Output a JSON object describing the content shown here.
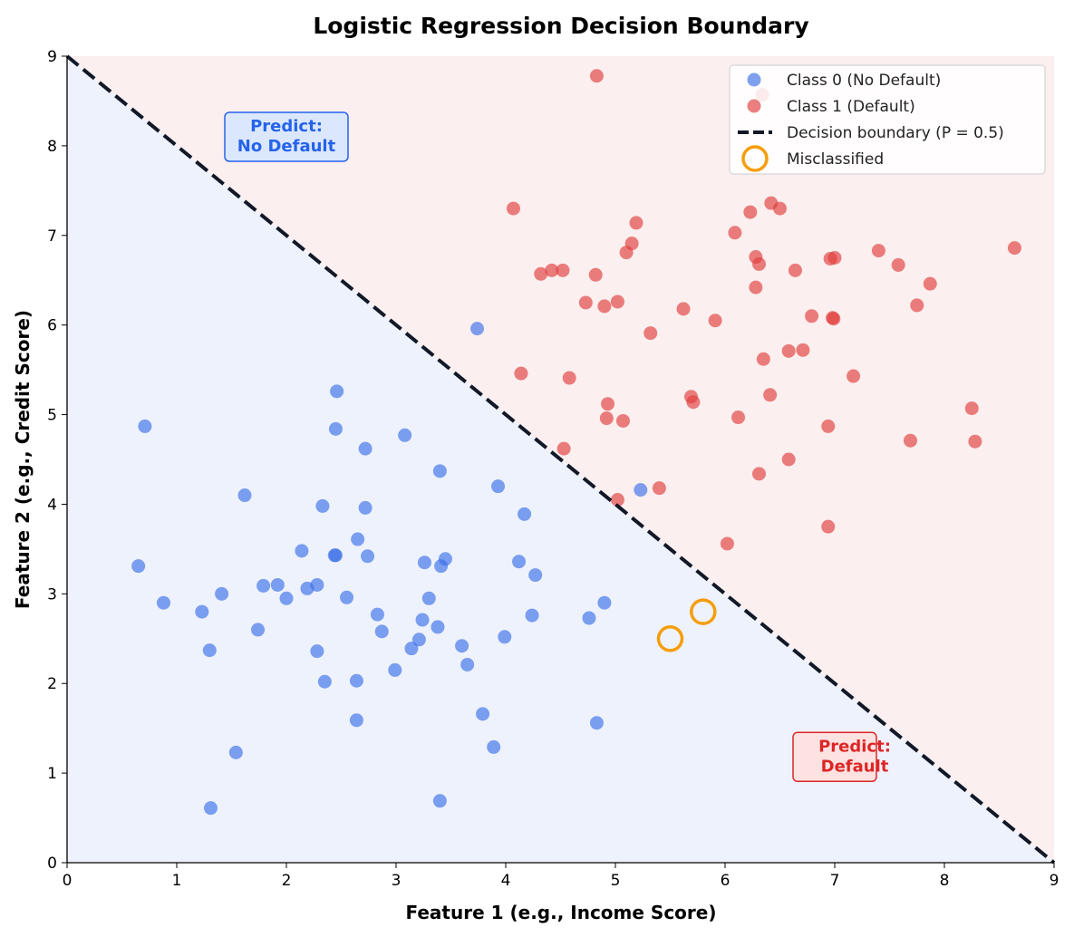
{
  "chart_data": {
    "type": "scatter",
    "title": "Logistic Regression Decision Boundary",
    "xlabel": "Feature 1 (e.g., Income Score)",
    "ylabel": "Feature 2 (e.g., Credit Score)",
    "xlim": [
      0,
      9
    ],
    "ylim": [
      0,
      9
    ],
    "xticks": [
      "0",
      "1",
      "2",
      "3",
      "4",
      "5",
      "6",
      "7",
      "8",
      "9"
    ],
    "yticks": [
      "0",
      "1",
      "2",
      "3",
      "4",
      "5",
      "6",
      "7",
      "8",
      "9"
    ],
    "grid": false,
    "legend_placement": "top-right",
    "colors": {
      "class0": "#3b6fe8",
      "class1": "#e03c3c",
      "boundary": "#111827",
      "misclassified": "#f59e0b",
      "region0": "#eef2fd",
      "region1": "#fcefef"
    },
    "series": [
      {
        "name": "Class 0 (No Default)",
        "points": [
          [
            0.71,
            4.87
          ],
          [
            0.65,
            3.31
          ],
          [
            0.88,
            2.9
          ],
          [
            1.23,
            2.8
          ],
          [
            1.3,
            2.37
          ],
          [
            1.41,
            3.0
          ],
          [
            1.31,
            0.61
          ],
          [
            1.54,
            1.23
          ],
          [
            1.62,
            4.1
          ],
          [
            1.74,
            2.6
          ],
          [
            1.79,
            3.09
          ],
          [
            1.92,
            3.1
          ],
          [
            2.0,
            2.95
          ],
          [
            2.14,
            3.48
          ],
          [
            2.19,
            3.06
          ],
          [
            2.28,
            3.1
          ],
          [
            2.28,
            2.36
          ],
          [
            2.33,
            3.98
          ],
          [
            2.35,
            2.02
          ],
          [
            2.44,
            3.43
          ],
          [
            2.45,
            3.43
          ],
          [
            2.46,
            5.26
          ],
          [
            2.45,
            4.84
          ],
          [
            2.55,
            2.96
          ],
          [
            2.64,
            2.03
          ],
          [
            2.64,
            1.59
          ],
          [
            2.65,
            3.61
          ],
          [
            2.72,
            4.62
          ],
          [
            2.72,
            3.96
          ],
          [
            2.74,
            3.42
          ],
          [
            2.83,
            2.77
          ],
          [
            2.87,
            2.58
          ],
          [
            2.99,
            2.15
          ],
          [
            3.08,
            4.77
          ],
          [
            3.14,
            2.39
          ],
          [
            3.21,
            2.49
          ],
          [
            3.24,
            2.71
          ],
          [
            3.26,
            3.35
          ],
          [
            3.3,
            2.95
          ],
          [
            3.38,
            2.63
          ],
          [
            3.4,
            0.69
          ],
          [
            3.4,
            4.37
          ],
          [
            3.41,
            3.31
          ],
          [
            3.45,
            3.39
          ],
          [
            3.6,
            2.42
          ],
          [
            3.65,
            2.21
          ],
          [
            3.74,
            5.96
          ],
          [
            3.79,
            1.66
          ],
          [
            3.89,
            1.29
          ],
          [
            3.93,
            4.2
          ],
          [
            3.99,
            2.52
          ],
          [
            4.12,
            3.36
          ],
          [
            4.17,
            3.89
          ],
          [
            4.24,
            2.76
          ],
          [
            4.27,
            3.21
          ],
          [
            4.76,
            2.73
          ],
          [
            4.83,
            1.56
          ],
          [
            4.9,
            2.9
          ],
          [
            5.23,
            4.16
          ]
        ]
      },
      {
        "name": "Class 1 (Default)",
        "points": [
          [
            4.83,
            8.78
          ],
          [
            6.34,
            8.57
          ],
          [
            4.07,
            7.3
          ],
          [
            5.19,
            7.14
          ],
          [
            5.15,
            6.91
          ],
          [
            5.1,
            6.81
          ],
          [
            4.32,
            6.57
          ],
          [
            4.42,
            6.61
          ],
          [
            4.52,
            6.61
          ],
          [
            4.82,
            6.56
          ],
          [
            4.73,
            6.25
          ],
          [
            4.9,
            6.21
          ],
          [
            5.02,
            6.26
          ],
          [
            4.14,
            5.46
          ],
          [
            4.58,
            5.41
          ],
          [
            4.93,
            5.12
          ],
          [
            4.92,
            4.96
          ],
          [
            5.07,
            4.93
          ],
          [
            4.53,
            4.62
          ],
          [
            5.02,
            4.05
          ],
          [
            5.4,
            4.18
          ],
          [
            5.32,
            5.91
          ],
          [
            5.62,
            6.18
          ],
          [
            5.69,
            5.2
          ],
          [
            5.71,
            5.14
          ],
          [
            5.91,
            6.05
          ],
          [
            6.02,
            3.56
          ],
          [
            6.09,
            7.03
          ],
          [
            6.12,
            4.97
          ],
          [
            6.23,
            7.26
          ],
          [
            6.28,
            6.76
          ],
          [
            6.31,
            6.68
          ],
          [
            6.28,
            6.42
          ],
          [
            6.31,
            4.34
          ],
          [
            6.35,
            5.62
          ],
          [
            6.42,
            7.36
          ],
          [
            6.41,
            5.22
          ],
          [
            6.5,
            7.3
          ],
          [
            6.58,
            5.71
          ],
          [
            6.58,
            4.5
          ],
          [
            6.64,
            6.61
          ],
          [
            6.71,
            5.72
          ],
          [
            6.79,
            6.1
          ],
          [
            6.94,
            4.87
          ],
          [
            6.94,
            3.75
          ],
          [
            6.96,
            6.74
          ],
          [
            7.0,
            6.75
          ],
          [
            6.98,
            6.08
          ],
          [
            6.99,
            6.07
          ],
          [
            7.17,
            5.43
          ],
          [
            7.4,
            6.83
          ],
          [
            7.58,
            6.67
          ],
          [
            7.69,
            4.71
          ],
          [
            7.75,
            6.22
          ],
          [
            7.87,
            6.46
          ],
          [
            8.25,
            5.07
          ],
          [
            8.28,
            4.7
          ],
          [
            8.64,
            6.86
          ]
        ]
      },
      {
        "name": "Decision boundary (P = 0.5)",
        "line": [
          [
            0,
            9
          ],
          [
            9,
            0
          ]
        ]
      },
      {
        "name": "Misclassified",
        "points": [
          [
            5.5,
            2.5
          ],
          [
            5.8,
            2.8
          ]
        ]
      }
    ],
    "annotations": [
      {
        "lines": [
          "Predict:",
          "No Default"
        ],
        "color": "#2563eb"
      },
      {
        "lines": [
          "Predict:",
          "Default"
        ],
        "color": "#dc2626"
      }
    ]
  }
}
